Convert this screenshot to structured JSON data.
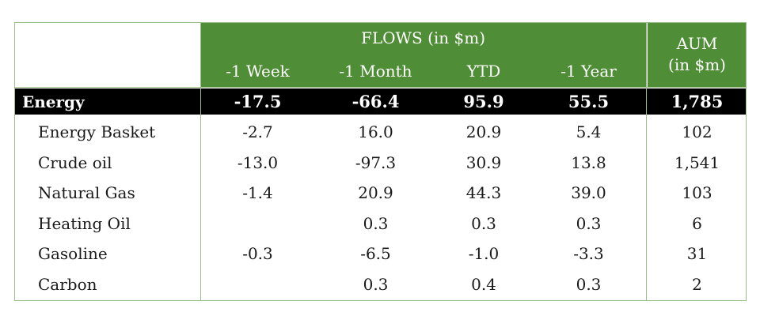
{
  "chart_data": {
    "type": "table",
    "header": {
      "flows_group": "FLOWS (in $m)",
      "aum_line1": "AUM",
      "aum_line2": "(in $m)",
      "columns": [
        "-1 Week",
        "-1 Month",
        "YTD",
        "-1 Year"
      ]
    },
    "summary_row": {
      "label": "Energy",
      "values": [
        "-17.5",
        "-66.4",
        "95.9",
        "55.5",
        "1,785"
      ]
    },
    "rows": [
      {
        "label": "Energy Basket",
        "values": [
          "-2.7",
          "16.0",
          "20.9",
          "5.4",
          "102"
        ]
      },
      {
        "label": "Crude oil",
        "values": [
          "-13.0",
          "-97.3",
          "30.9",
          "13.8",
          "1,541"
        ]
      },
      {
        "label": "Natural Gas",
        "values": [
          "-1.4",
          "20.9",
          "44.3",
          "39.0",
          "103"
        ]
      },
      {
        "label": "Heating Oil",
        "values": [
          "",
          "0.3",
          "0.3",
          "0.3",
          "6"
        ]
      },
      {
        "label": "Gasoline",
        "values": [
          "-0.3",
          "-6.5",
          "-1.0",
          "-3.3",
          "31"
        ]
      },
      {
        "label": "Carbon",
        "values": [
          "",
          "0.3",
          "0.4",
          "0.3",
          "2"
        ]
      }
    ],
    "colors": {
      "header_green": "#4f8d37",
      "summary_black": "#000000",
      "grid": "#9bbf8a"
    }
  }
}
